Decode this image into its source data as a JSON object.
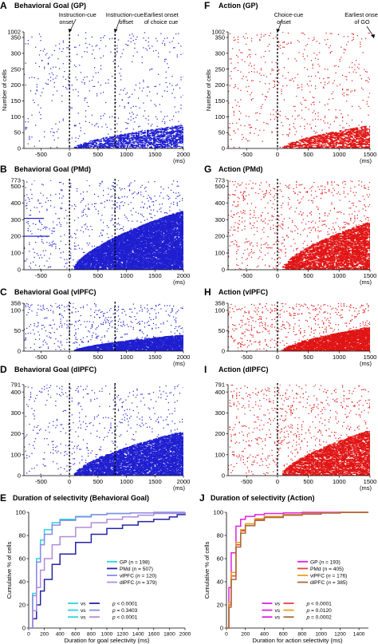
{
  "chart_data": [
    {
      "id": "A",
      "type": "scatter",
      "letter": "A",
      "title": "Behavioral Goal (GP)",
      "color": "#1f1fd0",
      "n_cells": 1002,
      "x_min": -800,
      "x_max": 2000,
      "x_unit": "(ms)",
      "xticks": [
        "-500",
        "0",
        "500",
        "1000",
        "1500",
        "2000"
      ],
      "yticks": [
        "0",
        "50",
        "100",
        "150",
        "200",
        "250",
        "300",
        "350",
        "1002"
      ],
      "ylabel": "Number of cells",
      "vlines": [
        0,
        800
      ],
      "annotations": [
        "Instruction-cue onset",
        "Instruction-cue offset",
        "Earliest onset of choice cue"
      ],
      "selective_cells": 198,
      "base_density": 0.015,
      "sel_density": 0.5
    },
    {
      "id": "B",
      "type": "scatter",
      "letter": "B",
      "title": "Behavioral Goal (PMd)",
      "color": "#1f1fd0",
      "n_cells": 773,
      "x_min": -800,
      "x_max": 2000,
      "x_unit": "(ms)",
      "xticks": [
        "-500",
        "0",
        "500",
        "1000",
        "1500",
        "2000"
      ],
      "yticks": [
        "0",
        "100",
        "200",
        "300",
        "400",
        "500",
        "773"
      ],
      "vlines": [
        0,
        800
      ],
      "selective_cells": 507,
      "base_density": 0.02,
      "sel_density": 0.82
    },
    {
      "id": "C",
      "type": "scatter",
      "letter": "C",
      "title": "Behavioral Goal (vlPFC)",
      "color": "#1f1fd0",
      "n_cells": 358,
      "x_min": -800,
      "x_max": 2000,
      "x_unit": "(ms)",
      "xticks": [
        "-500",
        "0",
        "500",
        "1000",
        "1500",
        "2000"
      ],
      "yticks": [
        "0",
        "50",
        "100",
        "358"
      ],
      "vlines": [
        0,
        800
      ],
      "selective_cells": 120,
      "base_density": 0.015,
      "sel_density": 0.55
    },
    {
      "id": "D",
      "type": "scatter",
      "letter": "D",
      "title": "Behavioral Goal (dlPFC)",
      "color": "#1f1fd0",
      "n_cells": 791,
      "x_min": -800,
      "x_max": 2000,
      "x_unit": "(ms)",
      "xticks": [
        "-500",
        "0",
        "500",
        "1000",
        "1500",
        "2000"
      ],
      "yticks": [
        "0",
        "100",
        "200",
        "300",
        "400",
        "791"
      ],
      "vlines": [
        0,
        800
      ],
      "selective_cells": 379,
      "base_density": 0.015,
      "sel_density": 0.7
    },
    {
      "id": "F",
      "type": "scatter",
      "letter": "F",
      "title": "Action (GP)",
      "color": "#e01515",
      "n_cells": 1002,
      "x_min": -800,
      "x_max": 1500,
      "x_unit": "(ms)",
      "xticks": [
        "-500",
        "0",
        "500",
        "1000",
        "1500"
      ],
      "yticks": [
        "0",
        "50",
        "100",
        "150",
        "200",
        "250",
        "300",
        "350",
        "1002"
      ],
      "ylabel": "Number of cells",
      "vlines": [
        0
      ],
      "annotations": [
        "Choice-cue onset",
        "Earliest onset of GO"
      ],
      "selective_cells": 193,
      "base_density": 0.02,
      "sel_density": 0.5
    },
    {
      "id": "G",
      "type": "scatter",
      "letter": "G",
      "title": "Action (PMd)",
      "color": "#e01515",
      "n_cells": 773,
      "x_min": -800,
      "x_max": 1500,
      "x_unit": "(ms)",
      "xticks": [
        "-500",
        "0",
        "500",
        "1000",
        "1500"
      ],
      "yticks": [
        "0",
        "100",
        "200",
        "300",
        "400",
        "500",
        "773"
      ],
      "vlines": [
        0
      ],
      "selective_cells": 405,
      "base_density": 0.025,
      "sel_density": 0.55
    },
    {
      "id": "H",
      "type": "scatter",
      "letter": "H",
      "title": "Action (vlPFC)",
      "color": "#e01515",
      "n_cells": 358,
      "x_min": -800,
      "x_max": 1500,
      "x_unit": "(ms)",
      "xticks": [
        "-500",
        "0",
        "500",
        "1000",
        "1500"
      ],
      "yticks": [
        "0",
        "50",
        "100",
        "358"
      ],
      "vlines": [
        0
      ],
      "selective_cells": 176,
      "base_density": 0.02,
      "sel_density": 0.5
    },
    {
      "id": "I",
      "type": "scatter",
      "letter": "I",
      "title": "Action (dlPFC)",
      "color": "#e01515",
      "n_cells": 791,
      "x_min": -800,
      "x_max": 1500,
      "x_unit": "(ms)",
      "xticks": [
        "-500",
        "0",
        "500",
        "1000",
        "1500"
      ],
      "yticks": [
        "0",
        "100",
        "200",
        "300",
        "400",
        "791"
      ],
      "vlines": [
        0
      ],
      "selective_cells": 385,
      "base_density": 0.025,
      "sel_density": 0.55
    },
    {
      "id": "E",
      "type": "line",
      "letter": "E",
      "title": "Duration of selectivity (Behavioral Goal)",
      "xlabel": "Duration for goal selectivity (ms)",
      "ylabel": "Cumulative % of cells",
      "xlim": [
        0,
        2000
      ],
      "ylim": [
        0,
        100
      ],
      "xticks": [
        "0",
        "200",
        "400",
        "600",
        "800",
        "1000",
        "1200",
        "1400",
        "1600",
        "1800",
        "2000"
      ],
      "yticks": [
        "0",
        "20",
        "40",
        "60",
        "80",
        "100"
      ],
      "series": [
        {
          "name": "GP",
          "n": "198",
          "color": "#29d4e0",
          "x": [
            0,
            50,
            100,
            150,
            200,
            300,
            400,
            600,
            800,
            1000,
            1300,
            1600,
            2000
          ],
          "y": [
            0,
            30,
            60,
            76,
            85,
            91,
            94,
            96.5,
            98,
            99,
            99.5,
            100,
            100
          ]
        },
        {
          "name": "PMd",
          "n": "507",
          "color": "#2424a8",
          "x": [
            0,
            50,
            100,
            150,
            200,
            300,
            400,
            600,
            800,
            1000,
            1200,
            1400,
            1600,
            1800,
            1900,
            2000
          ],
          "y": [
            0,
            8,
            20,
            32,
            42,
            55,
            64,
            74,
            81,
            86,
            89,
            92,
            94,
            96,
            98,
            100
          ]
        },
        {
          "name": "vlPFC",
          "n": "120",
          "color": "#8a8ae6",
          "x": [
            0,
            50,
            100,
            150,
            200,
            300,
            400,
            600,
            800,
            1000,
            1300,
            1600,
            2000
          ],
          "y": [
            0,
            28,
            57,
            72,
            81,
            89,
            93,
            96,
            98,
            99,
            99.5,
            100,
            100
          ]
        },
        {
          "name": "dlPFC",
          "n": "379",
          "color": "#b48ad8",
          "x": [
            0,
            50,
            100,
            150,
            200,
            300,
            400,
            600,
            800,
            1000,
            1200,
            1400,
            1600,
            2000
          ],
          "y": [
            0,
            15,
            35,
            50,
            60,
            72,
            79,
            87,
            91,
            94,
            96,
            97.5,
            99,
            100
          ]
        }
      ],
      "comparisons": [
        {
          "c1": "#29d4e0",
          "c2": "#2424a8",
          "vs": "vs",
          "p_label": "p",
          "op": "<",
          "value": "0.0001"
        },
        {
          "c1": "#29d4e0",
          "c2": "#8a8ae6",
          "vs": "vs",
          "p_label": "p",
          "op": "=",
          "value": "0.3403"
        },
        {
          "c1": "#29d4e0",
          "c2": "#b48ad8",
          "vs": "vs",
          "p_label": "p",
          "op": "<",
          "value": "0.0001"
        }
      ]
    },
    {
      "id": "J",
      "type": "line",
      "letter": "J",
      "title": "Duration of selectivity (Action)",
      "xlabel": "Duration for action selectivity (ms)",
      "ylabel": "Cumulative % of cells",
      "xlim": [
        0,
        1500
      ],
      "ylim": [
        0,
        100
      ],
      "xticks": [
        "0",
        "200",
        "400",
        "600",
        "800",
        "1000",
        "1200",
        "1400"
      ],
      "yticks": [
        "0",
        "20",
        "40",
        "60",
        "80",
        "100"
      ],
      "series": [
        {
          "name": "GP",
          "n": "193",
          "color": "#e020e0",
          "x": [
            0,
            25,
            50,
            100,
            150,
            200,
            300,
            400,
            600,
            800,
            1000,
            1500
          ],
          "y": [
            0,
            35,
            65,
            88,
            94,
            96.5,
            98,
            99,
            99.5,
            100,
            100,
            100
          ]
        },
        {
          "name": "PMd",
          "n": "405",
          "color": "#e64040",
          "x": [
            0,
            25,
            50,
            100,
            150,
            200,
            300,
            400,
            600,
            800,
            1000,
            1200,
            1500
          ],
          "y": [
            0,
            20,
            45,
            72,
            84,
            90,
            94,
            96,
            98,
            99,
            99.5,
            100,
            100
          ]
        },
        {
          "name": "vlPFC",
          "n": "176",
          "color": "#e8a020",
          "x": [
            0,
            25,
            50,
            100,
            150,
            200,
            300,
            400,
            600,
            800,
            1000,
            1200,
            1500
          ],
          "y": [
            0,
            22,
            48,
            74,
            85,
            90,
            94.5,
            96.5,
            98,
            99,
            99.5,
            100,
            100
          ]
        },
        {
          "name": "dlPFC",
          "n": "385",
          "color": "#a86a3c",
          "x": [
            0,
            25,
            50,
            100,
            150,
            200,
            300,
            400,
            600,
            800,
            1000,
            1200,
            1500
          ],
          "y": [
            0,
            18,
            42,
            70,
            82,
            88.5,
            93,
            95.5,
            97.5,
            98.5,
            99.3,
            100,
            100
          ]
        }
      ],
      "comparisons": [
        {
          "c1": "#e020e0",
          "c2": "#e64040",
          "vs": "vs",
          "p_label": "p",
          "op": "<",
          "value": "0.0001"
        },
        {
          "c1": "#e020e0",
          "c2": "#e8a020",
          "vs": "vs",
          "p_label": "p",
          "op": "=",
          "value": "0.0120"
        },
        {
          "c1": "#e020e0",
          "c2": "#a86a3c",
          "vs": "vs",
          "p_label": "p",
          "op": "=",
          "value": "0.0002"
        }
      ]
    }
  ]
}
